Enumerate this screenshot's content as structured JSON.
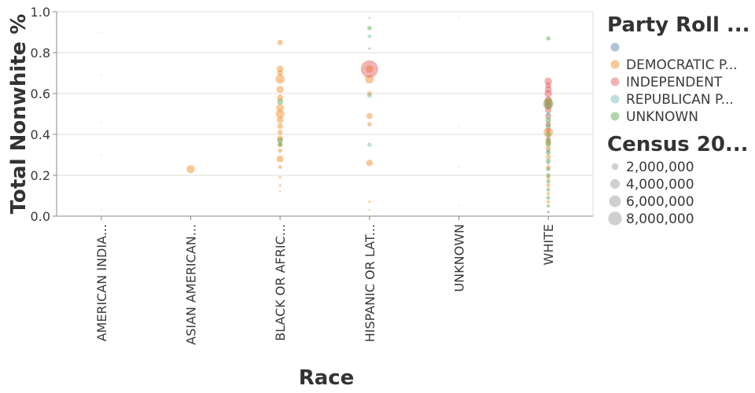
{
  "chart_data": {
    "type": "scatter",
    "xlabel": "Race",
    "ylabel": "Total Nonwhite %",
    "categories": [
      "AMERICAN INDIA...",
      "ASIAN AMERICAN...",
      "BLACK OR AFRIC...",
      "HISPANIC OR LAT...",
      "UNKNOWN",
      "WHITE"
    ],
    "ylim": [
      0,
      1
    ],
    "yticks": [
      "0.0",
      "0.2",
      "0.4",
      "0.6",
      "0.8",
      "1.0"
    ],
    "grid": true,
    "color_legend": {
      "title": "Party Roll ...",
      "position": "right",
      "entries": [
        {
          "label": "",
          "color": "#4c78a8"
        },
        {
          "label": "DEMOCRATIC P...",
          "color": "#f58518"
        },
        {
          "label": "INDEPENDENT",
          "color": "#e45756"
        },
        {
          "label": "REPUBLICAN P...",
          "color": "#72b7b2"
        },
        {
          "label": "UNKNOWN",
          "color": "#54a24b"
        }
      ]
    },
    "size_legend": {
      "title": "Census 20...",
      "entries": [
        {
          "label": "2,000,000",
          "value": 2000000
        },
        {
          "label": "4,000,000",
          "value": 4000000
        },
        {
          "label": "6,000,000",
          "value": 6000000
        },
        {
          "label": "8,000,000",
          "value": 8000000
        }
      ]
    },
    "series": [
      {
        "party": 1,
        "points": [
          {
            "x": "ASIAN AMERICAN...",
            "y": 0.23,
            "size": 1800000
          },
          {
            "x": "BLACK OR AFRIC...",
            "y": 0.85,
            "size": 800000
          },
          {
            "x": "BLACK OR AFRIC...",
            "y": 0.72,
            "size": 1200000
          },
          {
            "x": "BLACK OR AFRIC...",
            "y": 0.7,
            "size": 900000
          },
          {
            "x": "BLACK OR AFRIC...",
            "y": 0.67,
            "size": 2200000
          },
          {
            "x": "BLACK OR AFRIC...",
            "y": 0.62,
            "size": 1400000
          },
          {
            "x": "BLACK OR AFRIC...",
            "y": 0.58,
            "size": 1000000
          },
          {
            "x": "BLACK OR AFRIC...",
            "y": 0.53,
            "size": 1500000
          },
          {
            "x": "BLACK OR AFRIC...",
            "y": 0.5,
            "size": 2000000
          },
          {
            "x": "BLACK OR AFRIC...",
            "y": 0.47,
            "size": 1200000
          },
          {
            "x": "BLACK OR AFRIC...",
            "y": 0.44,
            "size": 900000
          },
          {
            "x": "BLACK OR AFRIC...",
            "y": 0.41,
            "size": 700000
          },
          {
            "x": "BLACK OR AFRIC...",
            "y": 0.38,
            "size": 1000000
          },
          {
            "x": "BLACK OR AFRIC...",
            "y": 0.35,
            "size": 600000
          },
          {
            "x": "BLACK OR AFRIC...",
            "y": 0.32,
            "size": 500000
          },
          {
            "x": "BLACK OR AFRIC...",
            "y": 0.28,
            "size": 1300000
          },
          {
            "x": "BLACK OR AFRIC...",
            "y": 0.24,
            "size": 400000
          },
          {
            "x": "BLACK OR AFRIC...",
            "y": 0.19,
            "size": 150000
          },
          {
            "x": "BLACK OR AFRIC...",
            "y": 0.15,
            "size": 150000
          },
          {
            "x": "BLACK OR AFRIC...",
            "y": 0.12,
            "size": 100000
          },
          {
            "x": "HISPANIC OR LAT...",
            "y": 0.72,
            "size": 1500000
          },
          {
            "x": "HISPANIC OR LAT...",
            "y": 0.67,
            "size": 2000000
          },
          {
            "x": "HISPANIC OR LAT...",
            "y": 0.6,
            "size": 600000
          },
          {
            "x": "HISPANIC OR LAT...",
            "y": 0.49,
            "size": 1000000
          },
          {
            "x": "HISPANIC OR LAT...",
            "y": 0.45,
            "size": 500000
          },
          {
            "x": "HISPANIC OR LAT...",
            "y": 0.26,
            "size": 1200000
          },
          {
            "x": "HISPANIC OR LAT...",
            "y": 0.07,
            "size": 150000
          },
          {
            "x": "HISPANIC OR LAT...",
            "y": 0.03,
            "size": 100000
          },
          {
            "x": "WHITE",
            "y": 0.56,
            "size": 1800000
          },
          {
            "x": "WHITE",
            "y": 0.41,
            "size": 2400000
          },
          {
            "x": "WHITE",
            "y": 0.36,
            "size": 1000000
          },
          {
            "x": "WHITE",
            "y": 0.33,
            "size": 700000
          },
          {
            "x": "WHITE",
            "y": 0.29,
            "size": 600000
          },
          {
            "x": "WHITE",
            "y": 0.24,
            "size": 500000
          },
          {
            "x": "WHITE",
            "y": 0.19,
            "size": 400000
          },
          {
            "x": "WHITE",
            "y": 0.15,
            "size": 400000
          },
          {
            "x": "WHITE",
            "y": 0.11,
            "size": 300000
          },
          {
            "x": "WHITE",
            "y": 0.07,
            "size": 300000
          }
        ]
      },
      {
        "party": 2,
        "points": [
          {
            "x": "HISPANIC OR LAT...",
            "y": 0.72,
            "size": 8000000
          },
          {
            "x": "WHITE",
            "y": 0.66,
            "size": 1500000
          },
          {
            "x": "WHITE",
            "y": 0.64,
            "size": 1000000
          },
          {
            "x": "WHITE",
            "y": 0.62,
            "size": 1300000
          },
          {
            "x": "WHITE",
            "y": 0.6,
            "size": 1500000
          },
          {
            "x": "WHITE",
            "y": 0.57,
            "size": 1200000
          },
          {
            "x": "WHITE",
            "y": 0.54,
            "size": 1500000
          },
          {
            "x": "WHITE",
            "y": 0.52,
            "size": 1200000
          },
          {
            "x": "WHITE",
            "y": 0.49,
            "size": 1000000
          },
          {
            "x": "WHITE",
            "y": 0.45,
            "size": 800000
          },
          {
            "x": "WHITE",
            "y": 0.42,
            "size": 600000
          },
          {
            "x": "WHITE",
            "y": 0.38,
            "size": 500000
          }
        ]
      },
      {
        "party": 3,
        "points": [
          {
            "x": "HISPANIC OR LAT...",
            "y": 0.88,
            "size": 400000
          },
          {
            "x": "HISPANIC OR LAT...",
            "y": 0.59,
            "size": 600000
          },
          {
            "x": "HISPANIC OR LAT...",
            "y": 0.35,
            "size": 500000
          },
          {
            "x": "WHITE",
            "y": 0.5,
            "size": 600000
          },
          {
            "x": "WHITE",
            "y": 0.32,
            "size": 400000
          },
          {
            "x": "WHITE",
            "y": 0.26,
            "size": 300000
          }
        ]
      },
      {
        "party": 4,
        "points": [
          {
            "x": "BLACK OR AFRIC...",
            "y": 0.56,
            "size": 1000000
          },
          {
            "x": "BLACK OR AFRIC...",
            "y": 0.37,
            "size": 900000
          },
          {
            "x": "BLACK OR AFRIC...",
            "y": 0.35,
            "size": 600000
          },
          {
            "x": "HISPANIC OR LAT...",
            "y": 0.92,
            "size": 500000
          },
          {
            "x": "HISPANIC OR LAT...",
            "y": 0.97,
            "size": 100000
          },
          {
            "x": "HISPANIC OR LAT...",
            "y": 0.82,
            "size": 150000
          },
          {
            "x": "WHITE",
            "y": 0.87,
            "size": 500000
          },
          {
            "x": "WHITE",
            "y": 0.55,
            "size": 2800000
          },
          {
            "x": "WHITE",
            "y": 0.47,
            "size": 900000
          },
          {
            "x": "WHITE",
            "y": 0.44,
            "size": 700000
          },
          {
            "x": "WHITE",
            "y": 0.4,
            "size": 700000
          },
          {
            "x": "WHITE",
            "y": 0.37,
            "size": 800000
          },
          {
            "x": "WHITE",
            "y": 0.35,
            "size": 700000
          },
          {
            "x": "WHITE",
            "y": 0.31,
            "size": 600000
          },
          {
            "x": "WHITE",
            "y": 0.27,
            "size": 600000
          },
          {
            "x": "WHITE",
            "y": 0.23,
            "size": 500000
          },
          {
            "x": "WHITE",
            "y": 0.2,
            "size": 500000
          },
          {
            "x": "WHITE",
            "y": 0.17,
            "size": 500000
          },
          {
            "x": "WHITE",
            "y": 0.13,
            "size": 400000
          },
          {
            "x": "WHITE",
            "y": 0.09,
            "size": 400000
          },
          {
            "x": "WHITE",
            "y": 0.05,
            "size": 300000
          },
          {
            "x": "WHITE",
            "y": 0.02,
            "size": 200000
          }
        ]
      },
      {
        "party": 0,
        "points": [
          {
            "x": "AMERICAN INDIA...",
            "y": 0.9,
            "size": 20000
          },
          {
            "x": "AMERICAN INDIA...",
            "y": 0.69,
            "size": 20000
          },
          {
            "x": "AMERICAN INDIA...",
            "y": 0.46,
            "size": 20000
          },
          {
            "x": "AMERICAN INDIA...",
            "y": 0.3,
            "size": 20000
          },
          {
            "x": "AMERICAN INDIA...",
            "y": 0.03,
            "size": 20000
          },
          {
            "x": "UNKNOWN",
            "y": 0.97,
            "size": 15000
          },
          {
            "x": "UNKNOWN",
            "y": 0.44,
            "size": 15000
          },
          {
            "x": "UNKNOWN",
            "y": 0.24,
            "size": 15000
          },
          {
            "x": "UNKNOWN",
            "y": 0.05,
            "size": 15000
          }
        ]
      }
    ]
  }
}
